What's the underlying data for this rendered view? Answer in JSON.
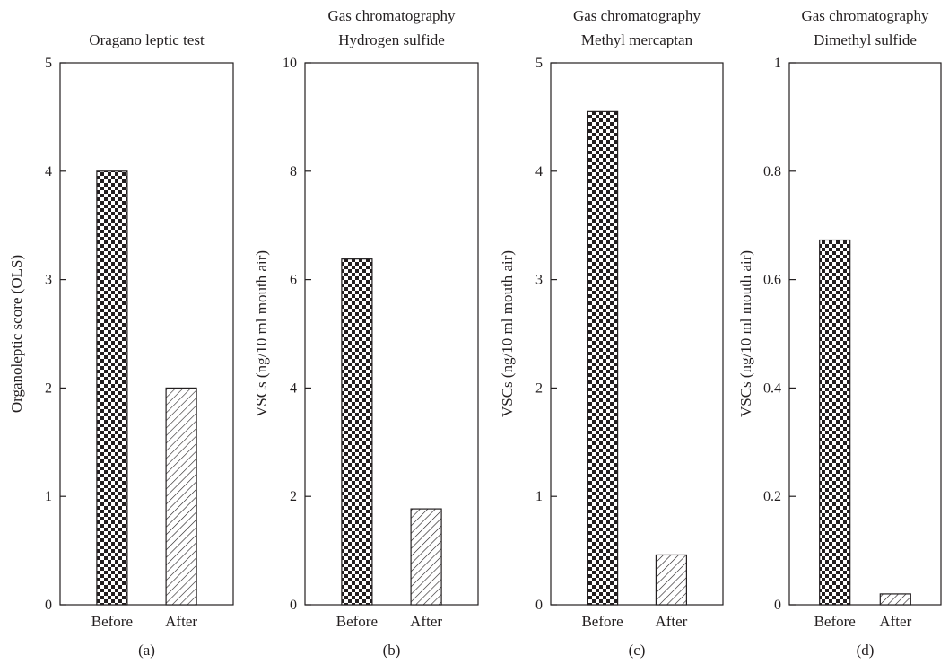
{
  "chart_data": [
    {
      "type": "bar",
      "panel_label": "(a)",
      "title_lines": [
        "Oragano leptic test"
      ],
      "ylabel": "Organoleptic score (OLS)",
      "xlabel": "",
      "categories": [
        "Before",
        "After"
      ],
      "values": [
        4.0,
        2.0
      ],
      "bar_patterns": [
        "checkerboard",
        "hatch"
      ],
      "ylim": [
        0,
        5
      ],
      "yticks": [
        "0",
        "1",
        "2",
        "3",
        "4",
        "5"
      ],
      "grid": false
    },
    {
      "type": "bar",
      "panel_label": "(b)",
      "title_lines": [
        "Gas chromatography",
        "Hydrogen sulfide"
      ],
      "ylabel": "VSCs (ng/10 ml mouth air)",
      "xlabel": "",
      "categories": [
        "Before",
        "After"
      ],
      "values": [
        6.38,
        1.77
      ],
      "bar_patterns": [
        "checkerboard",
        "hatch"
      ],
      "ylim": [
        0,
        10
      ],
      "yticks": [
        "0",
        "2",
        "4",
        "6",
        "8",
        "10"
      ],
      "grid": false
    },
    {
      "type": "bar",
      "panel_label": "(c)",
      "title_lines": [
        "Gas chromatography",
        "Methyl mercaptan"
      ],
      "ylabel": "VSCs (ng/10 ml mouth air)",
      "xlabel": "",
      "categories": [
        "Before",
        "After"
      ],
      "values": [
        4.55,
        0.46
      ],
      "bar_patterns": [
        "checkerboard",
        "hatch"
      ],
      "ylim": [
        0,
        5
      ],
      "yticks": [
        "0",
        "1",
        "2",
        "3",
        "4",
        "5"
      ],
      "grid": false
    },
    {
      "type": "bar",
      "panel_label": "(d)",
      "title_lines": [
        "Gas chromatography",
        "Dimethyl sulfide"
      ],
      "ylabel": "VSCs (ng/10 ml mouth air)",
      "xlabel": "",
      "categories": [
        "Before",
        "After"
      ],
      "values": [
        0.673,
        0.02
      ],
      "bar_patterns": [
        "checkerboard",
        "hatch"
      ],
      "ylim": [
        0,
        1
      ],
      "yticks": [
        "0",
        "0.2",
        "0.4",
        "0.6",
        "0.8",
        "1"
      ],
      "grid": false
    }
  ],
  "colors": {
    "ink": "#231f20",
    "background": "#ffffff"
  }
}
